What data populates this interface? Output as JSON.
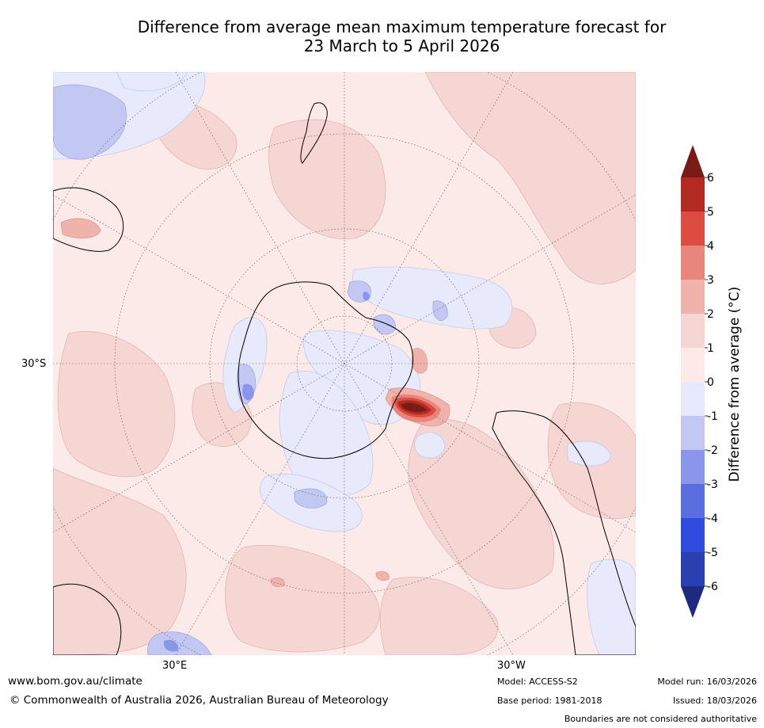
{
  "title_line1": "Difference from average mean maximum temperature forecast for",
  "title_line2": "23 March to 5 April 2026",
  "axis_labels": {
    "lat": "30°S",
    "lon_left": "30°E",
    "lon_right": "30°W"
  },
  "colorbar": {
    "title": "Difference from average (°C)",
    "ticks": [
      "6",
      "5",
      "4",
      "3",
      "2",
      "1",
      "0",
      "-1",
      "-2",
      "-3",
      "-4",
      "-5",
      "-6"
    ],
    "colors": {
      "above6": "#7a1c16",
      "c5_6": "#b22a22",
      "c4_5": "#dc4c41",
      "c3_4": "#e8857c",
      "c2_3": "#f0b3ac",
      "c1_2": "#f5d6d3",
      "c0_1": "#fbeae8",
      "cm1_0": "#e6eafa",
      "cm2_m1": "#c3c8f3",
      "cm3_m2": "#8a96ea",
      "cm4_m3": "#5b6ee0",
      "cm5_m4": "#2f4cdf",
      "cm6_m5": "#2a3fb0",
      "below_m6": "#1c2a80"
    }
  },
  "footer": {
    "url": "www.bom.gov.au/climate",
    "copyright": "© Commonwealth of Australia 2026, Australian Bureau of Meteorology",
    "model": "Model: ACCESS-S2",
    "base_period": "Base period: 1981-2018",
    "model_run": "Model run: 16/03/2026",
    "issued": "Issued: 18/03/2026",
    "disclaimer": "Boundaries are not considered authoritative"
  }
}
